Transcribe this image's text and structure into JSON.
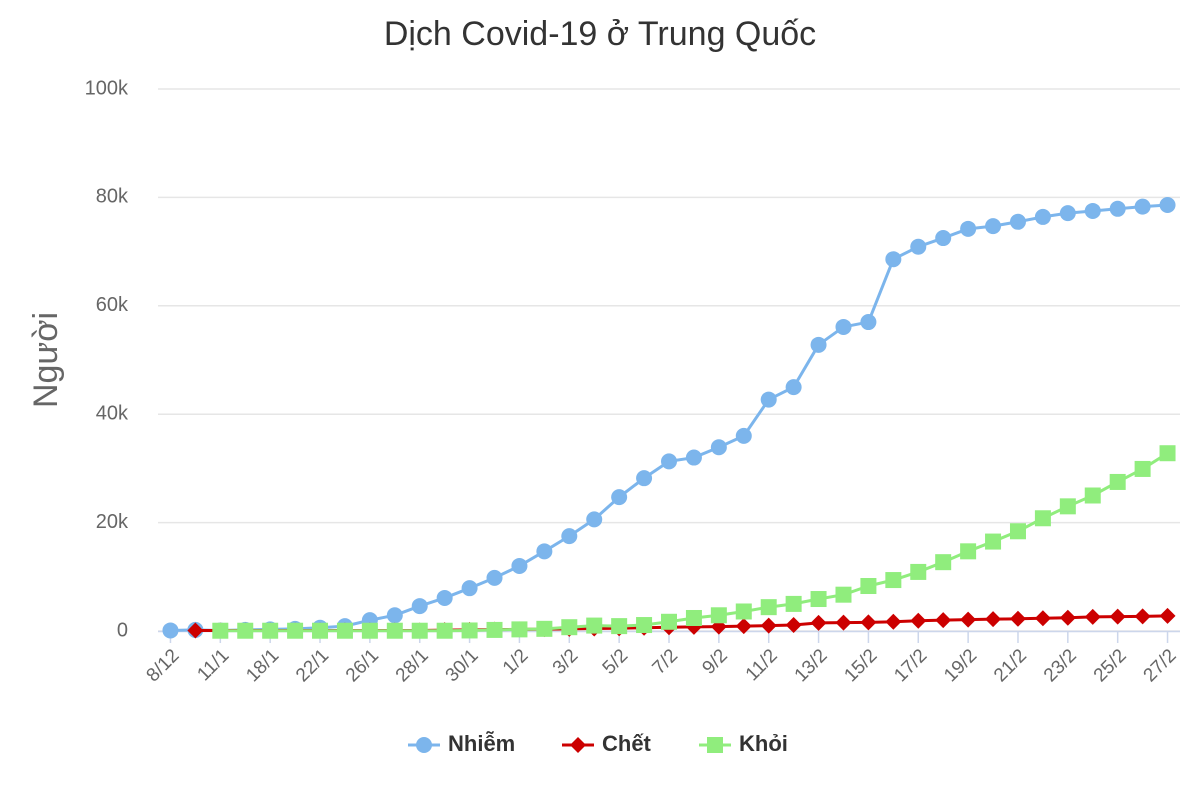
{
  "chart_data": {
    "type": "line",
    "title": "Dịch Covid-19 ở Trung Quốc",
    "y_label": "Người",
    "categories": [
      "8/12",
      null,
      "11/1",
      null,
      "18/1",
      null,
      "22/1",
      null,
      "26/1",
      null,
      "28/1",
      null,
      "30/1",
      null,
      "1/2",
      null,
      "3/2",
      null,
      "5/2",
      null,
      "7/2",
      null,
      "9/2",
      null,
      "11/2",
      null,
      "13/2",
      null,
      "15/2",
      null,
      "17/2",
      null,
      "19/2",
      null,
      "21/2",
      null,
      "23/2",
      null,
      "25/2",
      null,
      "27/2"
    ],
    "series": [
      {
        "name": "Nhiễm",
        "color": "#7cb5ec",
        "marker": "circle",
        "values": [
          100,
          200,
          100,
          200,
          300,
          400,
          600,
          900,
          2000,
          2900,
          4600,
          6100,
          7900,
          9800,
          12000,
          14700,
          17500,
          20600,
          24700,
          28200,
          31300,
          32000,
          33900,
          36000,
          42700,
          45000,
          52800,
          56100,
          57000,
          68600,
          70900,
          72500,
          74200,
          74700,
          75500,
          76400,
          77100,
          77500,
          77900,
          78300,
          78600
        ]
      },
      {
        "name": "Chết",
        "color": "#cc0000",
        "marker": "diamond",
        "values": [
          null,
          100,
          100,
          100,
          100,
          100,
          100,
          100,
          100,
          100,
          100,
          150,
          200,
          250,
          300,
          350,
          400,
          450,
          500,
          600,
          700,
          750,
          800,
          900,
          1000,
          1100,
          1500,
          1550,
          1600,
          1700,
          1900,
          2000,
          2100,
          2200,
          2250,
          2350,
          2450,
          2600,
          2650,
          2700,
          2800
        ]
      },
      {
        "name": "Khỏi",
        "color": "#90ed7d",
        "marker": "square",
        "values": [
          null,
          null,
          50,
          50,
          50,
          50,
          50,
          50,
          50,
          50,
          50,
          50,
          100,
          200,
          300,
          400,
          700,
          1000,
          900,
          1100,
          1700,
          2400,
          2900,
          3600,
          4400,
          5000,
          5900,
          6700,
          8300,
          9400,
          10900,
          12700,
          14700,
          16500,
          18400,
          20800,
          23000,
          25000,
          27500,
          29900,
          32800
        ]
      }
    ],
    "ylim": [
      0,
      100000
    ],
    "yticks": [
      0,
      {
        "value": 20000,
        "label": "20k"
      },
      {
        "value": 40000,
        "label": "40k"
      },
      {
        "value": 60000,
        "label": "60k"
      },
      {
        "value": 80000,
        "label": "80k"
      },
      {
        "value": 100000,
        "label": "100k"
      }
    ],
    "grid": true,
    "legend": "bottom"
  }
}
